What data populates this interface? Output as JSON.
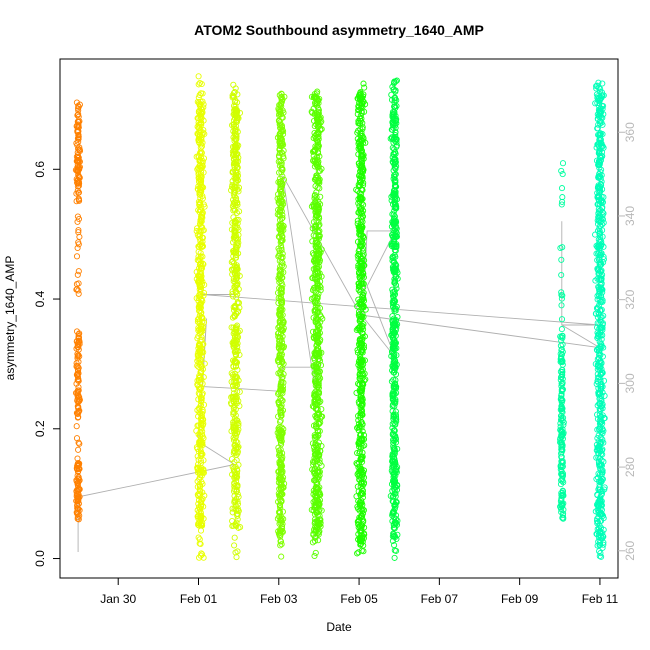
{
  "chart_data": {
    "type": "scatter",
    "title": "ATOM2 Southbound asymmetry_1640_AMP",
    "xlabel": "Date",
    "ylabel": "asymmetry_1640_AMP",
    "x_unit": "days since Jan 30",
    "xlim": [
      -1.45,
      12.45
    ],
    "ylim": [
      -0.03,
      0.77
    ],
    "right_ylim": [
      253.5,
      377.5
    ],
    "x_ticks": [
      {
        "value": 0,
        "label": "Jan 30"
      },
      {
        "value": 2,
        "label": "Feb 01"
      },
      {
        "value": 4,
        "label": "Feb 03"
      },
      {
        "value": 6,
        "label": "Feb 05"
      },
      {
        "value": 8,
        "label": "Feb 07"
      },
      {
        "value": 10,
        "label": "Feb 09"
      },
      {
        "value": 12,
        "label": "Feb 11"
      }
    ],
    "y_ticks": [
      {
        "value": 0.0,
        "label": "0.0"
      },
      {
        "value": 0.2,
        "label": "0.2"
      },
      {
        "value": 0.4,
        "label": "0.4"
      },
      {
        "value": 0.6,
        "label": "0.6"
      }
    ],
    "right_y_ticks": [
      {
        "value": 260,
        "label": "260"
      },
      {
        "value": 280,
        "label": "280"
      },
      {
        "value": 300,
        "label": "300"
      },
      {
        "value": 320,
        "label": "320"
      },
      {
        "value": 340,
        "label": "340"
      },
      {
        "value": 360,
        "label": "360"
      }
    ],
    "point_clusters": [
      {
        "name": "cluster-1",
        "color": "#ff8000",
        "x": -1.0,
        "width": 0.12,
        "y_range": [
          0.055,
          0.73
        ],
        "dense_ranges": [
          [
            0.06,
            0.15
          ],
          [
            0.2,
            0.35
          ],
          [
            0.55,
            0.7
          ]
        ],
        "count": 260
      },
      {
        "name": "cluster-2",
        "color": "#e8ff00",
        "x": 2.05,
        "width": 0.26,
        "y_range": [
          0.0,
          0.745
        ],
        "dense_ranges": [
          [
            0.05,
            0.72
          ]
        ],
        "count": 520
      },
      {
        "name": "cluster-3",
        "color": "#d0ff00",
        "x": 2.92,
        "width": 0.26,
        "y_range": [
          0.0,
          0.735
        ],
        "dense_ranges": [
          [
            0.05,
            0.72
          ]
        ],
        "count": 500
      },
      {
        "name": "cluster-4",
        "color": "#80ff00",
        "x": 4.05,
        "width": 0.2,
        "y_range": [
          0.0,
          0.73
        ],
        "dense_ranges": [
          [
            0.02,
            0.72
          ]
        ],
        "count": 500
      },
      {
        "name": "cluster-5",
        "color": "#5aff00",
        "x": 4.95,
        "width": 0.32,
        "y_range": [
          0.0,
          0.725
        ],
        "dense_ranges": [
          [
            0.03,
            0.72
          ]
        ],
        "count": 640
      },
      {
        "name": "cluster-6",
        "color": "#1fff00",
        "x": 6.05,
        "width": 0.26,
        "y_range": [
          0.0,
          0.735
        ],
        "dense_ranges": [
          [
            0.02,
            0.72
          ]
        ],
        "count": 600
      },
      {
        "name": "cluster-7",
        "color": "#00ff40",
        "x": 6.88,
        "width": 0.2,
        "y_range": [
          0.0,
          0.755
        ],
        "dense_ranges": [
          [
            0.03,
            0.72
          ]
        ],
        "count": 520
      },
      {
        "name": "cluster-8",
        "color": "#00ffa0",
        "x": 11.05,
        "width": 0.12,
        "y_range": [
          0.055,
          0.62
        ],
        "dense_ranges": [
          [
            0.06,
            0.35
          ]
        ],
        "count": 180
      },
      {
        "name": "cluster-9",
        "color": "#00ffb8",
        "x": 12.0,
        "width": 0.26,
        "y_range": [
          0.0,
          0.735
        ],
        "dense_ranges": [
          [
            0.02,
            0.72
          ]
        ],
        "count": 580
      }
    ],
    "connector_line": {
      "color": "#b0b0b0",
      "points": [
        [
          -1.0,
          0.01
        ],
        [
          -1.0,
          0.095
        ],
        [
          2.9,
          0.145
        ],
        [
          2.0,
          0.18
        ],
        [
          2.2,
          0.37
        ],
        [
          2.1,
          0.265
        ],
        [
          3.0,
          0.262
        ],
        [
          4.0,
          0.258
        ],
        [
          4.1,
          0.295
        ],
        [
          4.9,
          0.295
        ],
        [
          4.9,
          0.262
        ],
        [
          4.1,
          0.59
        ],
        [
          6.0,
          0.38
        ],
        [
          6.9,
          0.31
        ],
        [
          6.2,
          0.42
        ],
        [
          6.9,
          0.505
        ],
        [
          6.2,
          0.505
        ],
        [
          6.1,
          0.375
        ],
        [
          12.0,
          0.325
        ],
        [
          11.05,
          0.36
        ],
        [
          11.05,
          0.52
        ],
        [
          11.05,
          0.36
        ],
        [
          11.05,
          0.36
        ],
        [
          11.05,
          0.36
        ],
        [
          12.0,
          0.36
        ],
        [
          2.1,
          0.407
        ],
        [
          2.9,
          0.407
        ]
      ]
    }
  }
}
